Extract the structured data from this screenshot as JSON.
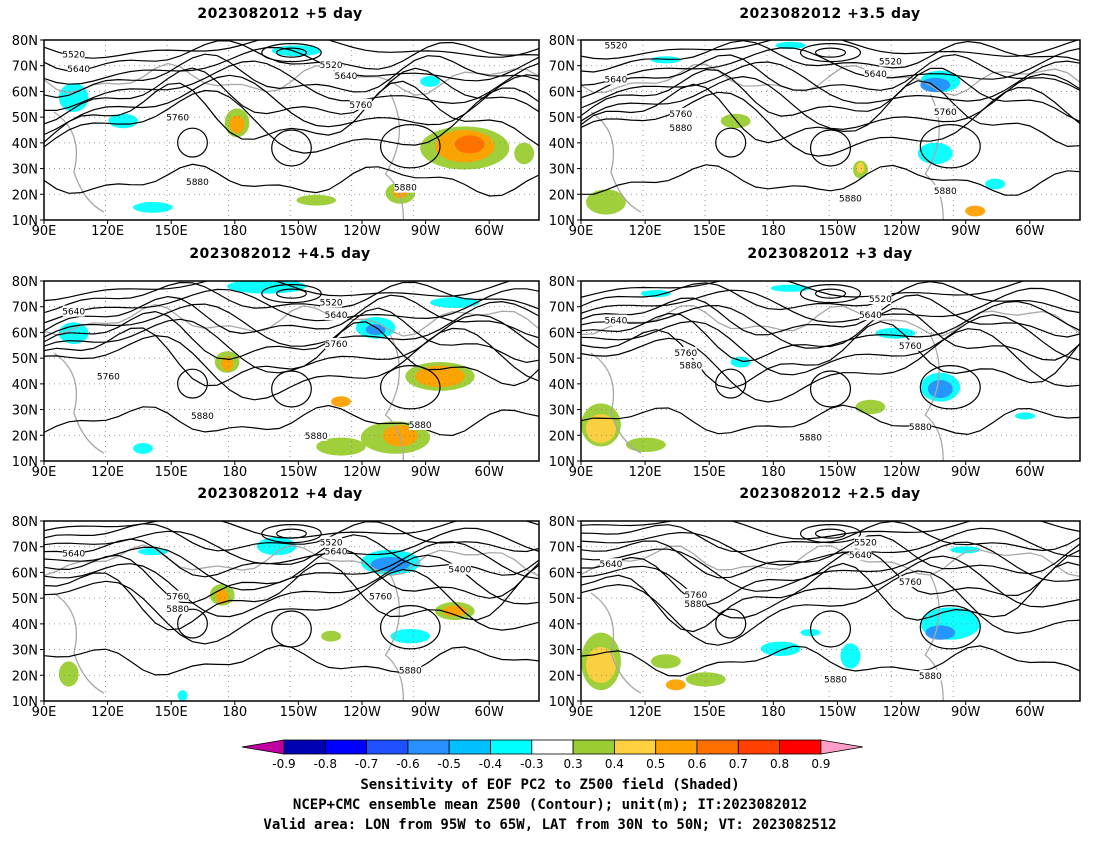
{
  "panels": [
    {
      "title": "2023082012 +5 day",
      "labels": [
        "5520",
        "5640",
        "5520",
        "5640",
        "5760",
        "5760",
        "5880",
        "5880"
      ]
    },
    {
      "title": "2023082012 +3.5 day",
      "labels": [
        "5520",
        "5640",
        "5520",
        "5640",
        "5760",
        "5760",
        "5880",
        "5880",
        "5880"
      ]
    },
    {
      "title": "2023082012 +4.5 day",
      "labels": [
        "5640",
        "5520",
        "5640",
        "5760",
        "5760",
        "5880",
        "5880",
        "5880"
      ]
    },
    {
      "title": "2023082012 +3 day",
      "labels": [
        "5640",
        "5520",
        "5640",
        "5760",
        "5760",
        "5880",
        "5880",
        "5880"
      ]
    },
    {
      "title": "2023082012 +4 day",
      "labels": [
        "5640",
        "5520",
        "5640",
        "5400",
        "5760",
        "5880",
        "5760",
        "5880"
      ]
    },
    {
      "title": "2023082012 +2.5 day",
      "labels": [
        "5640",
        "5520",
        "5640",
        "5760",
        "5760",
        "5880",
        "5880",
        "5880"
      ]
    }
  ],
  "axes": {
    "lon_ticks": [
      "90E",
      "120E",
      "150E",
      "180",
      "150W",
      "120W",
      "90W",
      "60W"
    ],
    "lat_ticks": [
      "80N",
      "70N",
      "60N",
      "50N",
      "40N",
      "30N",
      "20N",
      "10N"
    ]
  },
  "colorbar": {
    "levels": [
      "-0.9",
      "-0.8",
      "-0.7",
      "-0.6",
      "-0.5",
      "-0.4",
      "-0.3",
      "0.3",
      "0.4",
      "0.5",
      "0.6",
      "0.7",
      "0.8",
      "0.9"
    ],
    "colors": [
      "#c000a0",
      "#0000b4",
      "#0000ff",
      "#1e50ff",
      "#2890ff",
      "#00c0ff",
      "#00ffff",
      "#ffffff",
      "#9acd32",
      "#ffd040",
      "#ffa000",
      "#ff7000",
      "#ff4000",
      "#ff0000",
      "#ff9ec8"
    ]
  },
  "footer": {
    "line1": "Sensitivity of EOF PC2 to Z500 field (Shaded)",
    "line2": "NCEP+CMC ensemble mean Z500 (Contour); unit(m); IT:2023082012",
    "line3": "Valid area: LON from 95W to 65W, LAT from 30N to 50N; VT: 2023082512"
  }
}
